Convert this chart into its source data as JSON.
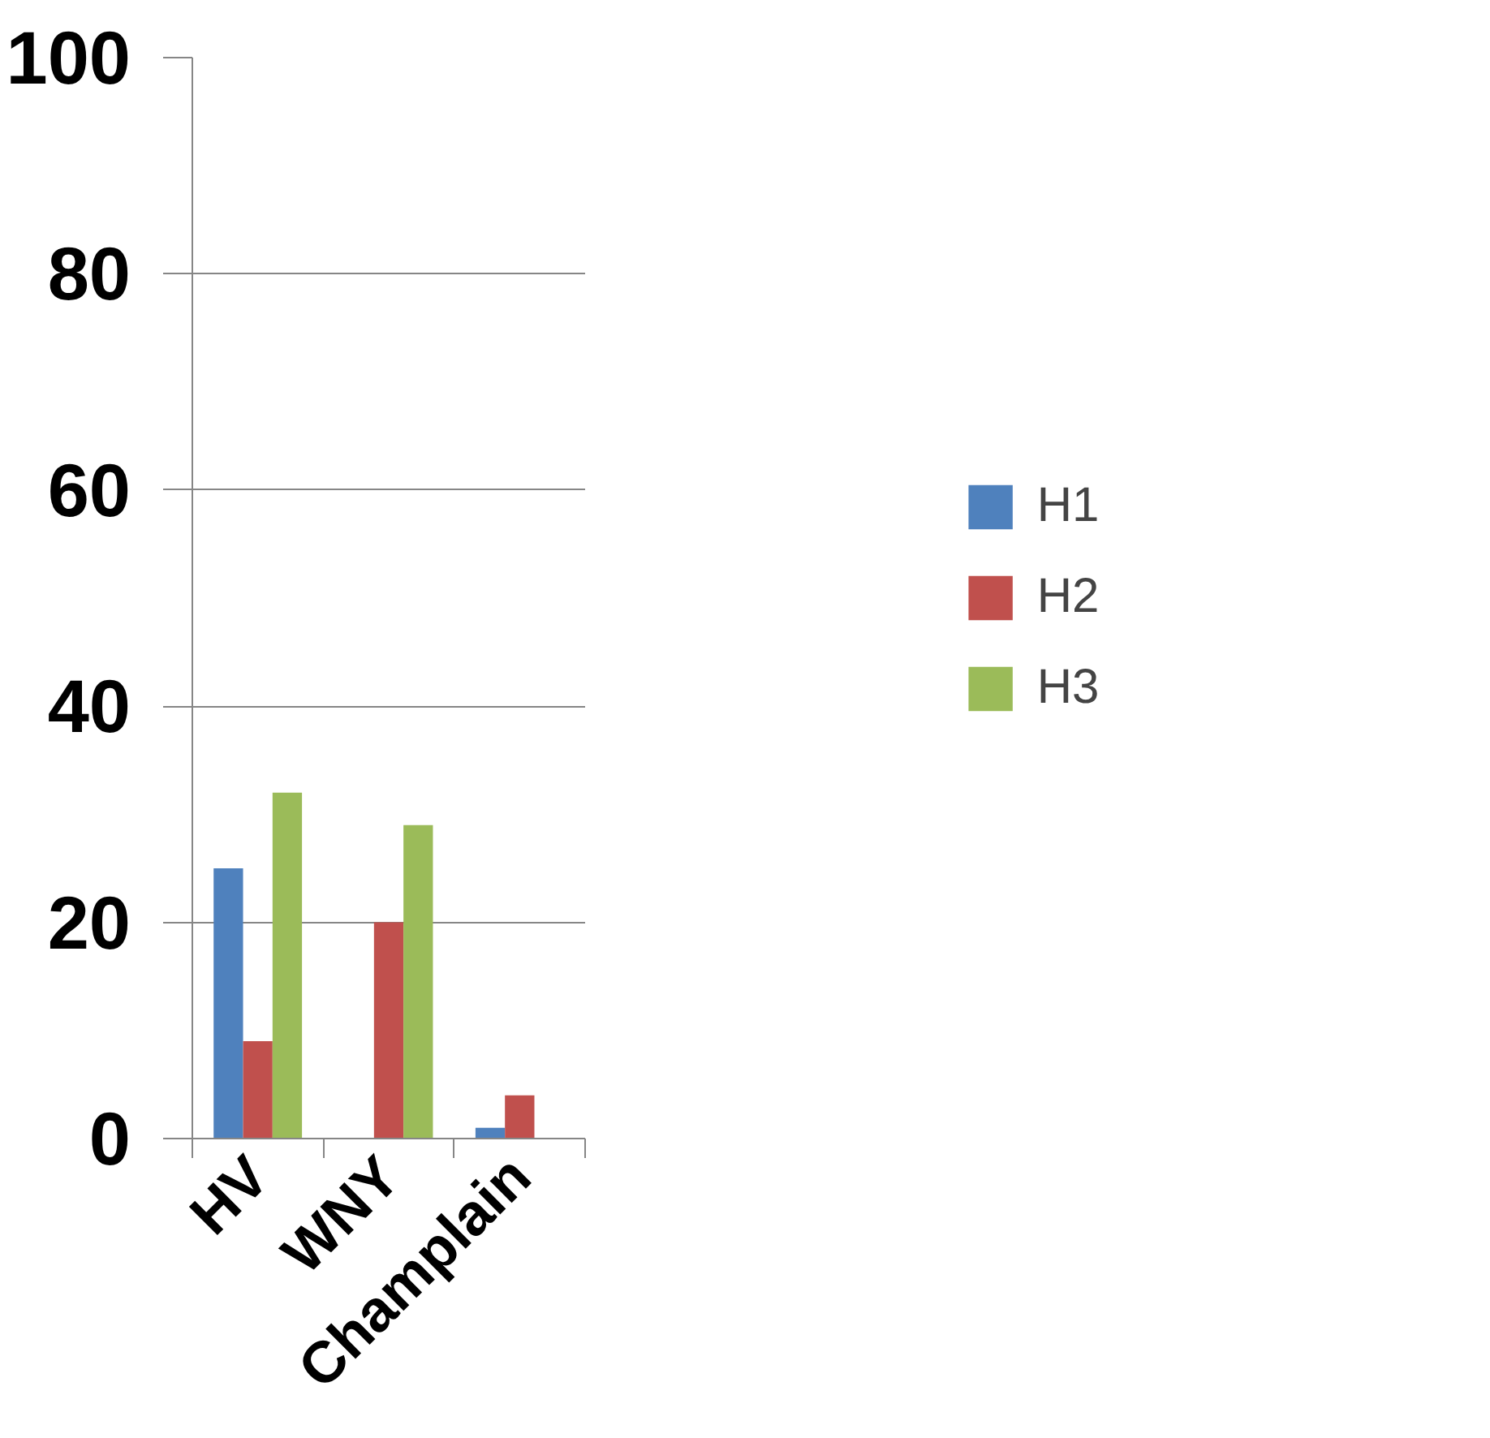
{
  "chart_data": {
    "type": "bar",
    "categories": [
      "HV",
      "WNY",
      "Champlain"
    ],
    "series": [
      {
        "name": "H1",
        "color": "#4f81bd",
        "values": [
          25,
          0,
          1
        ]
      },
      {
        "name": "H2",
        "color": "#c0504d",
        "values": [
          9,
          20,
          4
        ]
      },
      {
        "name": "H3",
        "color": "#9bbb59",
        "values": [
          32,
          29,
          0
        ]
      }
    ],
    "ylim": [
      0,
      100
    ],
    "yticks": [
      0,
      20,
      40,
      60,
      80,
      100
    ],
    "grid": "y",
    "legend": "right"
  }
}
